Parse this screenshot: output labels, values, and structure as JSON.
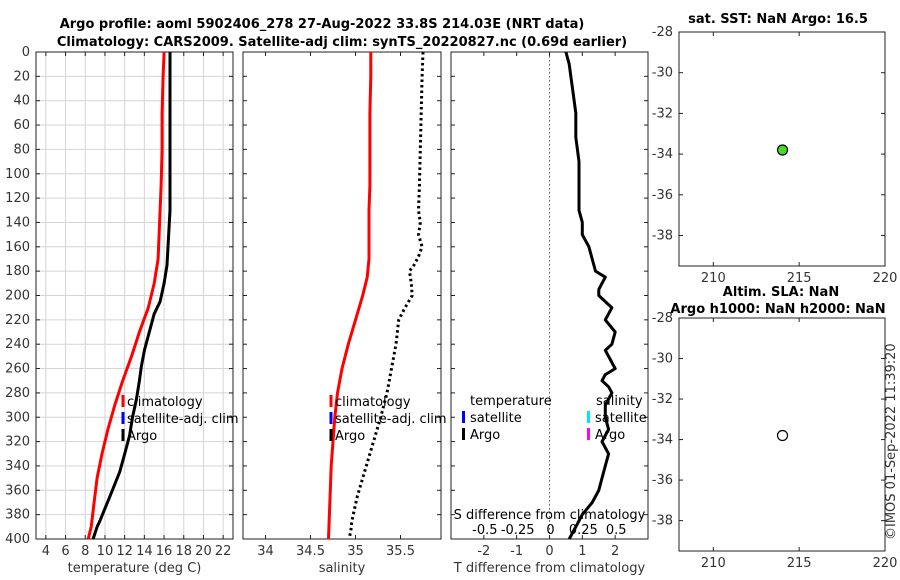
{
  "figure": {
    "title_line1": "Argo profile: aoml 5902406_278 27-Aug-2022 33.8S 214.03E (NRT data)",
    "title_line2": "Climatology: CARS2009. Satellite-adj clim: synTS_20220827.nc (0.69d earlier)",
    "stamp": "©IMOS 01-Sep-2022 11:39:20"
  },
  "colors": {
    "climatology": "#ff0000",
    "satellite_clim": "#0000ff",
    "argo": "#000000",
    "satellite_salinity": "#00e5ff",
    "argo_salinity": "#ff00ff",
    "sst_marker": "#44dd22"
  },
  "chart_data": [
    {
      "type": "line",
      "id": "temperature",
      "xlabel": "temperature (deg C)",
      "xlim": [
        3,
        23
      ],
      "ylim": [
        0,
        400
      ],
      "y_reversed": true,
      "grid": true,
      "xticks": [
        4,
        6,
        8,
        10,
        12,
        14,
        16,
        18,
        20,
        22
      ],
      "yticks": [
        0,
        20,
        40,
        60,
        80,
        100,
        120,
        140,
        160,
        180,
        200,
        220,
        240,
        260,
        280,
        300,
        320,
        340,
        360,
        380,
        400
      ],
      "legend": [
        "climatology",
        "satellite-adj. clim",
        "Argo"
      ],
      "series": [
        {
          "name": "climatology",
          "color": "#ff0000",
          "style": "solid",
          "x": [
            16.0,
            15.9,
            15.8,
            15.8,
            15.7,
            15.6,
            15.5,
            15.4,
            15.0,
            14.4,
            13.5,
            12.7,
            11.8,
            11.0,
            10.3,
            9.7,
            9.2,
            8.9,
            8.6,
            8.3
          ],
          "y": [
            0,
            20,
            50,
            80,
            110,
            130,
            150,
            170,
            190,
            210,
            230,
            250,
            270,
            290,
            310,
            330,
            350,
            370,
            390,
            400
          ]
        },
        {
          "name": "Argo",
          "color": "#000000",
          "style": "solid",
          "x": [
            16.6,
            16.6,
            16.6,
            16.6,
            16.6,
            16.6,
            16.5,
            16.4,
            16.3,
            16.0,
            15.6,
            15.0,
            14.5,
            14.0,
            13.7,
            13.5,
            13.2,
            12.8,
            12.5,
            12.0,
            11.5,
            11.0,
            10.5,
            10.0,
            9.5,
            9.2,
            9.0,
            8.8
          ],
          "y": [
            0,
            20,
            50,
            80,
            110,
            130,
            145,
            160,
            175,
            190,
            205,
            215,
            230,
            245,
            258,
            270,
            285,
            300,
            315,
            330,
            345,
            355,
            365,
            375,
            385,
            390,
            395,
            400
          ]
        }
      ]
    },
    {
      "type": "line",
      "id": "salinity",
      "xlabel": "salinity",
      "xlim": [
        33.75,
        35.95
      ],
      "ylim": [
        0,
        400
      ],
      "y_reversed": true,
      "grid": false,
      "xticks": [
        34,
        34.5,
        35,
        35.5
      ],
      "xtick_labels": [
        "34",
        "34.5",
        "35",
        "35.5"
      ],
      "legend": [
        "climatology",
        "satellite-adj. clim",
        "Argo"
      ],
      "series": [
        {
          "name": "climatology",
          "color": "#ff0000",
          "style": "solid",
          "x": [
            35.17,
            35.17,
            35.16,
            35.16,
            35.16,
            35.15,
            35.15,
            35.15,
            35.13,
            35.08,
            35.0,
            34.92,
            34.85,
            34.8,
            34.77,
            34.75,
            34.73,
            34.72,
            34.71,
            34.7
          ],
          "y": [
            0,
            20,
            50,
            80,
            110,
            130,
            150,
            170,
            185,
            200,
            220,
            240,
            260,
            280,
            300,
            320,
            340,
            360,
            380,
            400
          ]
        },
        {
          "name": "Argo",
          "color": "#000000",
          "style": "dotted",
          "x": [
            35.75,
            35.74,
            35.73,
            35.72,
            35.71,
            35.7,
            35.72,
            35.7,
            35.74,
            35.7,
            35.65,
            35.6,
            35.62,
            35.63,
            35.55,
            35.48,
            35.45,
            35.4,
            35.35,
            35.28,
            35.2,
            35.12,
            35.06,
            35.02,
            34.99,
            34.96,
            34.95,
            34.93
          ],
          "y": [
            0,
            20,
            50,
            80,
            110,
            130,
            140,
            150,
            160,
            168,
            175,
            180,
            190,
            200,
            210,
            220,
            240,
            260,
            280,
            300,
            320,
            340,
            355,
            365,
            375,
            385,
            392,
            400
          ]
        }
      ]
    },
    {
      "type": "line",
      "id": "difference",
      "xlabel": "T difference from climatology",
      "top_axis_label": "S difference from climatology",
      "xlim": [
        -3,
        3
      ],
      "ylim": [
        0,
        400
      ],
      "y_reversed": true,
      "grid": false,
      "xticks": [
        -2,
        -1,
        0,
        1,
        2
      ],
      "top_ticks": [
        -0.5,
        -0.25,
        0,
        0.25,
        0.5
      ],
      "top_tick_labels": [
        "-0.5",
        "-0.25",
        "0",
        "0.25",
        "0.5"
      ],
      "legend_left_title": "temperature",
      "legend_right_title": "salinity",
      "legend_left": [
        "satellite",
        "Argo"
      ],
      "legend_right": [
        "satellite",
        "Argo"
      ],
      "series": [
        {
          "name": "Argo T diff",
          "color": "#000000",
          "style": "solid",
          "x": [
            0.5,
            0.6,
            0.7,
            0.8,
            0.8,
            0.9,
            0.9,
            0.9,
            1.0,
            1.0,
            1.2,
            1.3,
            1.4,
            1.7,
            1.6,
            1.5,
            1.5,
            1.7,
            1.9,
            1.8,
            1.7,
            2.0,
            1.9,
            1.7,
            1.8,
            2.0,
            1.7,
            1.6,
            1.8,
            1.9,
            1.7,
            1.7,
            1.8,
            1.6,
            1.8,
            1.7,
            1.6,
            1.5,
            1.3,
            1.0,
            0.8,
            0.6
          ],
          "y": [
            0,
            10,
            30,
            50,
            70,
            90,
            110,
            130,
            140,
            150,
            160,
            170,
            180,
            185,
            190,
            195,
            200,
            205,
            210,
            215,
            220,
            230,
            240,
            245,
            250,
            260,
            265,
            270,
            275,
            280,
            290,
            300,
            310,
            320,
            330,
            340,
            350,
            360,
            370,
            380,
            390,
            400
          ]
        }
      ]
    },
    {
      "type": "scatter",
      "id": "sst_map",
      "title": "sat. SST: NaN Argo: 16.5",
      "xlim": [
        208,
        220
      ],
      "ylim": [
        -39.5,
        -28
      ],
      "xticks": [
        210,
        215,
        220
      ],
      "yticks": [
        -28,
        -30,
        -32,
        -34,
        -36,
        -38
      ],
      "points": [
        {
          "x": 214.03,
          "y": -33.8,
          "fill": "#44dd22"
        }
      ]
    },
    {
      "type": "scatter",
      "id": "sla_map",
      "title_line1": "Altim. SLA: NaN",
      "title_line2": "Argo h1000: NaN h2000: NaN",
      "xlim": [
        208,
        220
      ],
      "ylim": [
        -39.5,
        -28
      ],
      "xticks": [
        210,
        215,
        220
      ],
      "yticks": [
        -28,
        -30,
        -32,
        -34,
        -36,
        -38
      ],
      "points": [
        {
          "x": 214.03,
          "y": -33.8,
          "fill": "#ffffff"
        }
      ]
    }
  ]
}
